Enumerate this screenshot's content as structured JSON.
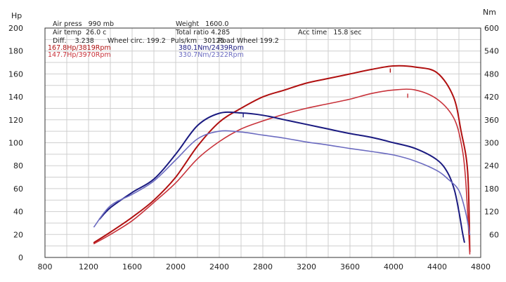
{
  "chart_data": {
    "type": "line",
    "title": "",
    "xlabel": "",
    "y_left_label": "Hp",
    "y_right_label": "Nm",
    "xlim": [
      800,
      4800
    ],
    "ylim_left": [
      0,
      200
    ],
    "ylim_right": [
      0,
      600
    ],
    "x_ticks": [
      800,
      1200,
      1600,
      2000,
      2400,
      2800,
      3200,
      3600,
      4000,
      4400,
      4800
    ],
    "y_left_ticks": [
      0,
      20,
      40,
      60,
      80,
      100,
      120,
      140,
      160,
      180,
      200
    ],
    "y_right_ticks": [
      60,
      120,
      180,
      240,
      300,
      360,
      420,
      480,
      540,
      600
    ],
    "grid": true,
    "info": {
      "air_press": "Air press   990 mb",
      "air_temp": "Air temp  26.0 c",
      "diff": "Diff.    3.238",
      "wheel_circ": "Wheel circ. 199.2",
      "puls_km": "Puls/km   30125",
      "road_wheel": "Road Wheel 199.2",
      "weight": "Weight   1600.0",
      "total_ratio": "Total ratio 4.285",
      "acc_time": "Acc time   15.8 sec"
    },
    "legend": {
      "hp1": "167.8Hp/3819Rpm",
      "hp2": "147.7Hp/3970Rpm",
      "nm1": "380.1Nm/2439Rpm",
      "nm2": "330.7Nm/2322Rpm"
    },
    "colors": {
      "power_1": "#b01010",
      "power_2": "#c8323a",
      "torque_1": "#1a1a80",
      "torque_2": "#6b6bc0"
    },
    "series": [
      {
        "name": "Power 1 (Hp)",
        "axis": "left",
        "color": "#b01010",
        "x": [
          1250,
          1400,
          1600,
          1800,
          2000,
          2200,
          2400,
          2600,
          2800,
          3000,
          3200,
          3400,
          3600,
          3800,
          4000,
          4200,
          4400,
          4550,
          4620,
          4680,
          4700
        ],
        "y": [
          13,
          22,
          35,
          50,
          70,
          97,
          118,
          130,
          140,
          146,
          152,
          156,
          160,
          164,
          167,
          166,
          161,
          140,
          110,
          75,
          5
        ]
      },
      {
        "name": "Power 2 (Hp)",
        "axis": "left",
        "color": "#c8323a",
        "x": [
          1250,
          1400,
          1600,
          1800,
          2000,
          2200,
          2400,
          2600,
          2800,
          3000,
          3200,
          3400,
          3600,
          3800,
          4000,
          4200,
          4400,
          4550,
          4620,
          4660,
          4700
        ],
        "y": [
          12,
          20,
          32,
          48,
          65,
          86,
          101,
          112,
          119,
          125,
          130,
          134,
          138,
          143,
          146,
          146,
          138,
          122,
          100,
          70,
          3
        ]
      },
      {
        "name": "Torque 1 (Nm)",
        "axis": "right",
        "color": "#1a1a80",
        "x": [
          1300,
          1400,
          1600,
          1800,
          2000,
          2200,
          2400,
          2600,
          2800,
          3000,
          3200,
          3400,
          3600,
          3800,
          4000,
          4200,
          4400,
          4500,
          4560,
          4600,
          4630,
          4650
        ],
        "y": [
          100,
          130,
          170,
          205,
          270,
          345,
          377,
          378,
          372,
          360,
          348,
          336,
          324,
          314,
          300,
          285,
          255,
          220,
          175,
          120,
          70,
          40
        ]
      },
      {
        "name": "Torque 2 (Nm)",
        "axis": "right",
        "color": "#6b6bc0",
        "x": [
          1250,
          1400,
          1600,
          1800,
          2000,
          2200,
          2400,
          2600,
          2800,
          3000,
          3200,
          3400,
          3600,
          3800,
          4000,
          4200,
          4400,
          4500,
          4600,
          4660,
          4700
        ],
        "y": [
          80,
          135,
          165,
          200,
          255,
          310,
          330,
          328,
          320,
          312,
          302,
          294,
          285,
          277,
          268,
          252,
          227,
          205,
          175,
          120,
          60
        ]
      }
    ],
    "markers": [
      {
        "series": 0,
        "x": 3970,
        "y": 163
      },
      {
        "series": 1,
        "x": 4130,
        "y": 141
      },
      {
        "series": 2,
        "x": 2620,
        "y": 372
      }
    ]
  }
}
